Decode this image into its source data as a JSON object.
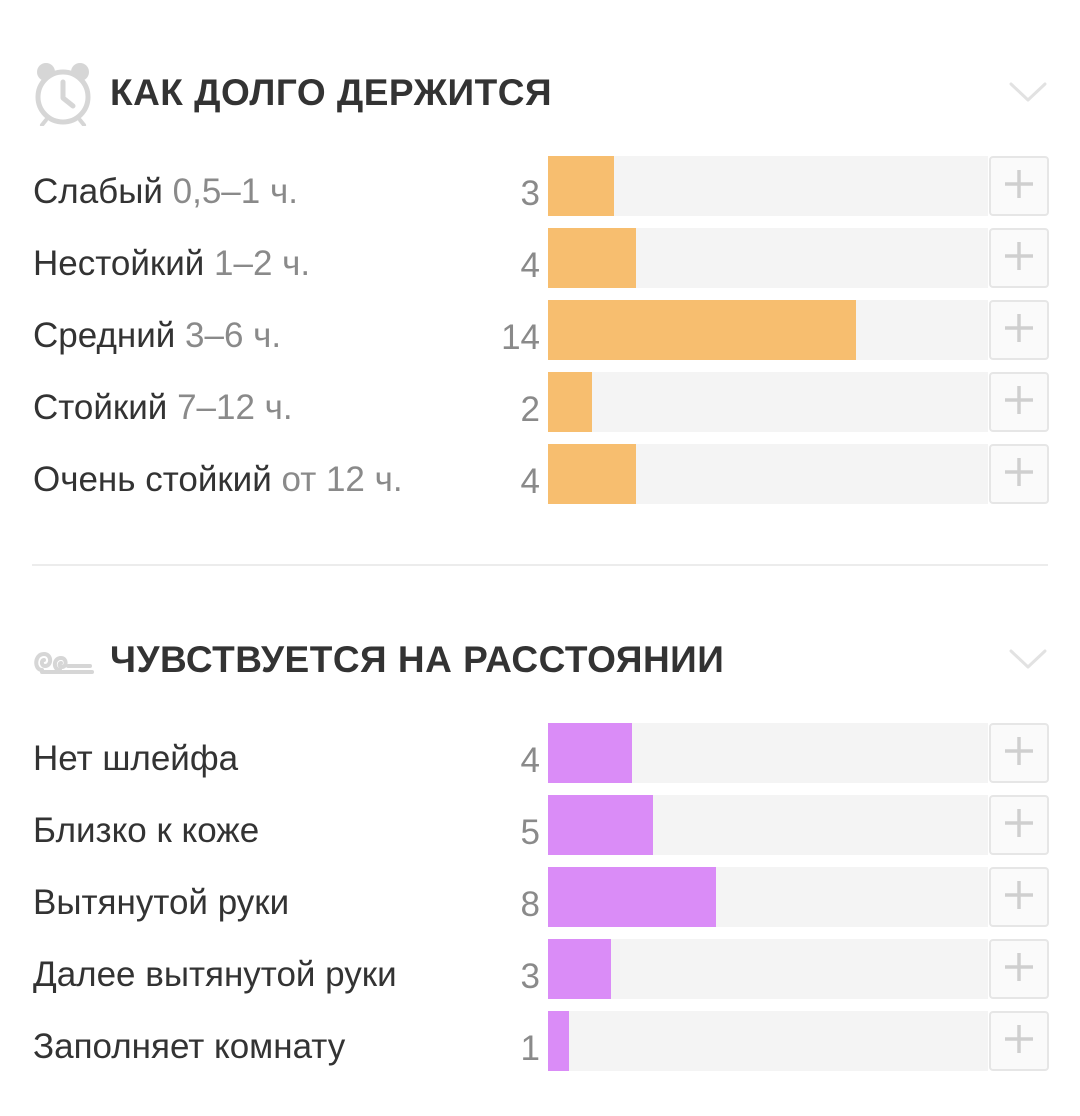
{
  "sections": [
    {
      "id": "longevity",
      "title": "КАК ДОЛГО ДЕРЖИТСЯ",
      "icon": "alarm-clock-icon",
      "bar_color": "#f7be6f",
      "max_value": 20,
      "rows": [
        {
          "label": "Слабый",
          "sub": "0,5–1 ч.",
          "count": "3",
          "value": 3
        },
        {
          "label": "Нестойкий",
          "sub": "1–2 ч.",
          "count": "4",
          "value": 4
        },
        {
          "label": "Средний",
          "sub": "3–6 ч.",
          "count": "14",
          "value": 14
        },
        {
          "label": "Стойкий",
          "sub": "7–12 ч.",
          "count": "2",
          "value": 2
        },
        {
          "label": "Очень стойкий",
          "sub": "от 12 ч.",
          "count": "4",
          "value": 4
        }
      ]
    },
    {
      "id": "sillage",
      "title": "ЧУВСТВУЕТСЯ НА РАССТОЯНИИ",
      "icon": "wind-swirl-icon",
      "bar_color": "#da8cf7",
      "max_value": 21,
      "rows": [
        {
          "label": "Нет шлейфа",
          "sub": "",
          "count": "4",
          "value": 4
        },
        {
          "label": "Близко к коже",
          "sub": "",
          "count": "5",
          "value": 5
        },
        {
          "label": "Вытянутой руки",
          "sub": "",
          "count": "8",
          "value": 8
        },
        {
          "label": "Далее вытянутой руки",
          "sub": "",
          "count": "3",
          "value": 3
        },
        {
          "label": "Заполняет комнату",
          "sub": "",
          "count": "1",
          "value": 1
        }
      ]
    }
  ]
}
